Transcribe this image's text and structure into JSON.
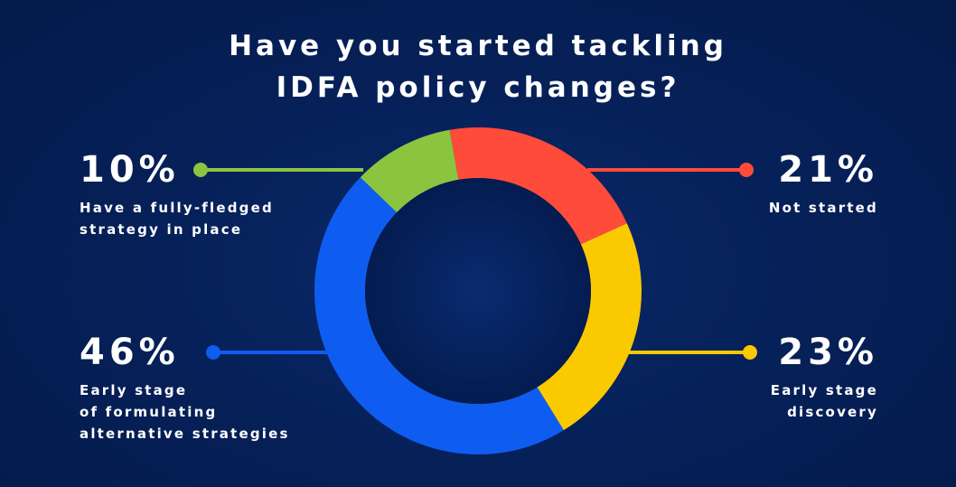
{
  "title": {
    "line1": "Have you started tackling",
    "line2": "IDFA policy changes?"
  },
  "chart_data": {
    "type": "pie",
    "variant": "donut",
    "title": "Have you started tackling IDFA policy changes?",
    "slices": [
      {
        "label": "Not started",
        "label_lines": [
          "Not started"
        ],
        "value": 21,
        "display": "21%",
        "color": "#ff4b3a",
        "position": "top-right"
      },
      {
        "label": "Early stage discovery",
        "label_lines": [
          "Early stage",
          "discovery"
        ],
        "value": 23,
        "display": "23%",
        "color": "#fbc900",
        "position": "bottom-right"
      },
      {
        "label": "Early stage of formulating alternative strategies",
        "label_lines": [
          "Early stage",
          "of formulating",
          "alternative strategies"
        ],
        "value": 46,
        "display": "46%",
        "color": "#0f5cf0",
        "position": "bottom-left"
      },
      {
        "label": "Have a fully-fledged strategy in place",
        "label_lines": [
          "Have a fully-fledged",
          "strategy in place"
        ],
        "value": 10,
        "display": "10%",
        "color": "#8bc540",
        "position": "top-left"
      }
    ]
  }
}
